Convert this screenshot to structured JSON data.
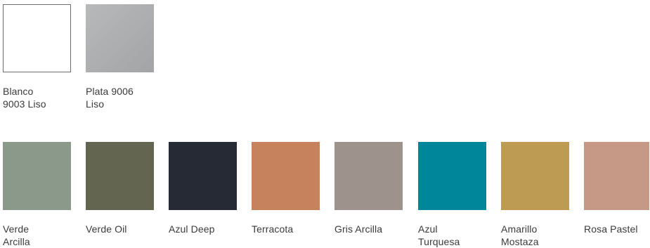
{
  "finishes_top": [
    {
      "label": "Blanco\n9003 Liso",
      "color": "#ffffff",
      "bordered": true
    },
    {
      "label": "Plata 9006\nLiso",
      "color": "#aeafb1",
      "gradient": [
        "#b8b9bb",
        "#a3a4a6"
      ]
    }
  ],
  "finishes_bottom": [
    {
      "label": "Verde\nArcilla",
      "color": "#8b998a"
    },
    {
      "label": "Verde Oil",
      "color": "#636550"
    },
    {
      "label": "Azul Deep",
      "color": "#262a35"
    },
    {
      "label": "Terracota",
      "color": "#c6825c"
    },
    {
      "label": "Gris Arcilla",
      "color": "#9e938c"
    },
    {
      "label": "Azul\nTurquesa",
      "color": "#00869a"
    },
    {
      "label": "Amarillo\nMostaza",
      "color": "#bd9b53"
    },
    {
      "label": "Rosa Pastel",
      "color": "#c69886"
    }
  ]
}
